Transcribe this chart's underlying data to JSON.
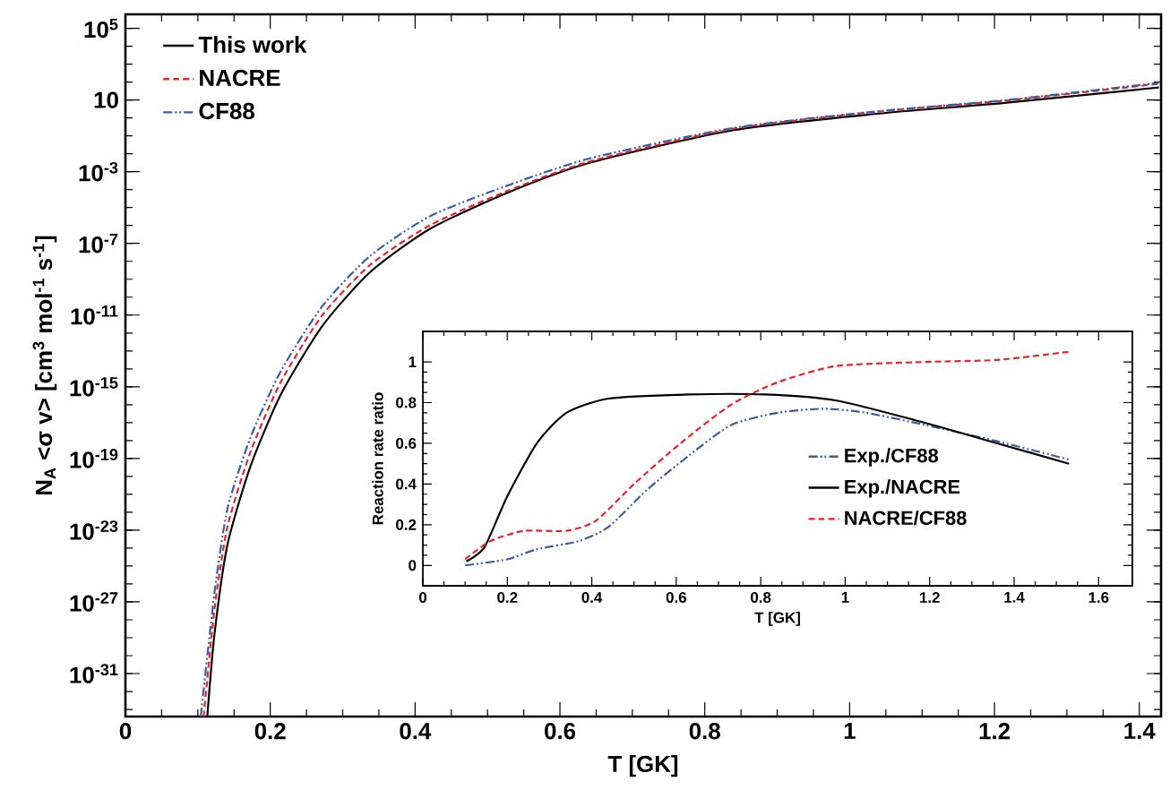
{
  "chart_data": [
    {
      "type": "line",
      "xlabel": "T [GK]",
      "ylabel": "N$_{A}$ <σ v> [cm$^{3}$ mol$^{-1}$ s$^{-1}$]",
      "log": "y",
      "legend": "top left",
      "xlim": [
        0,
        1.43
      ],
      "ylim": [
        4e-34,
        600000.0
      ],
      "xticks": [
        0,
        0.2,
        0.4,
        0.6,
        0.8,
        1,
        1.2,
        1.4
      ],
      "yticks": [
        {
          "value": 100000.0,
          "label": "10$^{5}$"
        },
        10,
        {
          "value": 0.001,
          "label": "10$^{-3}$"
        },
        {
          "value": 1e-07,
          "label": "10$^{-7}$"
        },
        {
          "value": 1e-11,
          "label": "10$^{-11}$"
        },
        {
          "value": 1e-15,
          "label": "10$^{-15}$"
        },
        {
          "value": 1e-19,
          "label": "10$^{-19}$"
        },
        {
          "value": 1e-23,
          "label": "10$^{-23}$"
        },
        {
          "value": 1e-27,
          "label": "10$^{-27}$"
        },
        {
          "value": 1e-31,
          "label": "10$^{-31}$"
        }
      ],
      "series": [
        {
          "name": "This work",
          "color": "#000000",
          "line_style": "solid",
          "x": [
            0.113,
            0.123,
            0.141,
            0.173,
            0.215,
            0.272,
            0.338,
            0.42,
            0.526,
            0.642,
            0.84,
            1.037,
            1.217,
            1.427
          ],
          "values": [
            4e-34,
            1.6e-29,
            1.6e-24,
            4e-20,
            4e-16,
            2.5e-12,
            2.5e-09,
            6.3e-07,
            6.3e-05,
            0.0032,
            0.21,
            1.7,
            7.1,
            50
          ]
        },
        {
          "name": "NACRE",
          "color": "#e8232a",
          "line_style": "dashed",
          "x": [
            0.108,
            0.123,
            0.141,
            0.173,
            0.215,
            0.272,
            0.338,
            0.42,
            0.526,
            0.642,
            0.84,
            1.037,
            1.217,
            1.427
          ],
          "values": [
            4e-34,
            4e-28,
            1.6e-23,
            2.5e-19,
            2e-15,
            1e-11,
            6.3e-09,
            1e-06,
            8e-05,
            0.0038,
            0.25,
            2.2,
            9.3,
            80
          ]
        },
        {
          "name": "CF88",
          "color": "#3a5ba8",
          "line_style": "dashdotdotted",
          "x": [
            0.104,
            0.123,
            0.141,
            0.173,
            0.215,
            0.272,
            0.338,
            0.42,
            0.526,
            0.642,
            0.84,
            1.037,
            1.217,
            1.427
          ],
          "values": [
            4e-34,
            3.2e-27,
            1.6e-22,
            1.6e-18,
            8e-15,
            3.2e-11,
            2e-08,
            3.2e-06,
            0.00016,
            0.0056,
            0.28,
            2.3,
            10,
            90
          ]
        }
      ]
    },
    {
      "type": "line",
      "xlabel": "T [GK]",
      "ylabel": "Reaction rate ratio",
      "legend": "bottom right",
      "xlim": [
        0,
        1.68
      ],
      "ylim": [
        -0.1,
        1.15
      ],
      "xticks": [
        0,
        0.2,
        0.4,
        0.6,
        0.8,
        1,
        1.2,
        1.4,
        1.6
      ],
      "yticks": [
        0,
        0.2,
        0.4,
        0.6,
        0.8,
        1
      ],
      "series": [
        {
          "name": "Exp./CF88",
          "color": "#3a5ba8",
          "line_style": "dashdotdotted",
          "x": [
            0.1,
            0.2,
            0.27,
            0.37,
            0.44,
            0.53,
            0.63,
            0.73,
            0.84,
            0.95,
            1.05,
            1.19,
            1.36,
            1.53
          ],
          "values": [
            0.0,
            0.03,
            0.08,
            0.12,
            0.19,
            0.37,
            0.54,
            0.69,
            0.75,
            0.77,
            0.75,
            0.69,
            0.61,
            0.52
          ]
        },
        {
          "name": "Exp./NACRE",
          "color": "#000000",
          "line_style": "solid",
          "x": [
            0.103,
            0.146,
            0.2,
            0.27,
            0.34,
            0.44,
            0.63,
            0.81,
            0.98,
            1.19,
            1.36,
            1.53
          ],
          "values": [
            0.02,
            0.09,
            0.34,
            0.6,
            0.75,
            0.82,
            0.84,
            0.84,
            0.81,
            0.7,
            0.6,
            0.5
          ]
        },
        {
          "name": "NACRE/CF88",
          "color": "#e8232a",
          "line_style": "dashed",
          "x": [
            0.1,
            0.16,
            0.24,
            0.34,
            0.41,
            0.5,
            0.61,
            0.73,
            0.84,
            0.98,
            1.19,
            1.36,
            1.53
          ],
          "values": [
            0.03,
            0.12,
            0.17,
            0.17,
            0.22,
            0.4,
            0.6,
            0.79,
            0.9,
            0.98,
            1.0,
            1.01,
            1.05
          ]
        }
      ]
    }
  ]
}
